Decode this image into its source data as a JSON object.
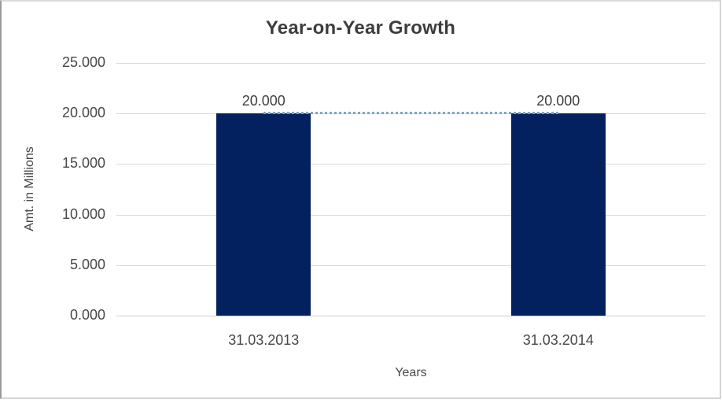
{
  "chart_data": {
    "type": "bar",
    "title": "Year-on-Year Growth",
    "xlabel": "Years",
    "ylabel": "Amt. in Millions",
    "categories": [
      "31.03.2013",
      "31.03.2014"
    ],
    "series": [
      {
        "name": "Amt. in Millions",
        "values": [
          20.0,
          20.0
        ]
      }
    ],
    "data_labels": [
      "20.000",
      "20.000"
    ],
    "ylim": [
      0,
      25
    ],
    "ytick_step": 5,
    "yticks": [
      "0.000",
      "5.000",
      "10.000",
      "15.000",
      "20.000",
      "25.000"
    ],
    "grid": true,
    "legend": "none",
    "bar_color": "#02215e",
    "trendline": {
      "style": "dotted",
      "color": "#7aa4d9",
      "connects": [
        "31.03.2013",
        "31.03.2014"
      ],
      "value": 20.0
    }
  },
  "frame": {
    "background": "#ffffff",
    "border_light": "#d9d9d9",
    "border_left_dark": "#9a9a9a",
    "gridline_color": "#d9d9d9",
    "text_color": "#474747",
    "title_color": "#3d3d3d"
  }
}
